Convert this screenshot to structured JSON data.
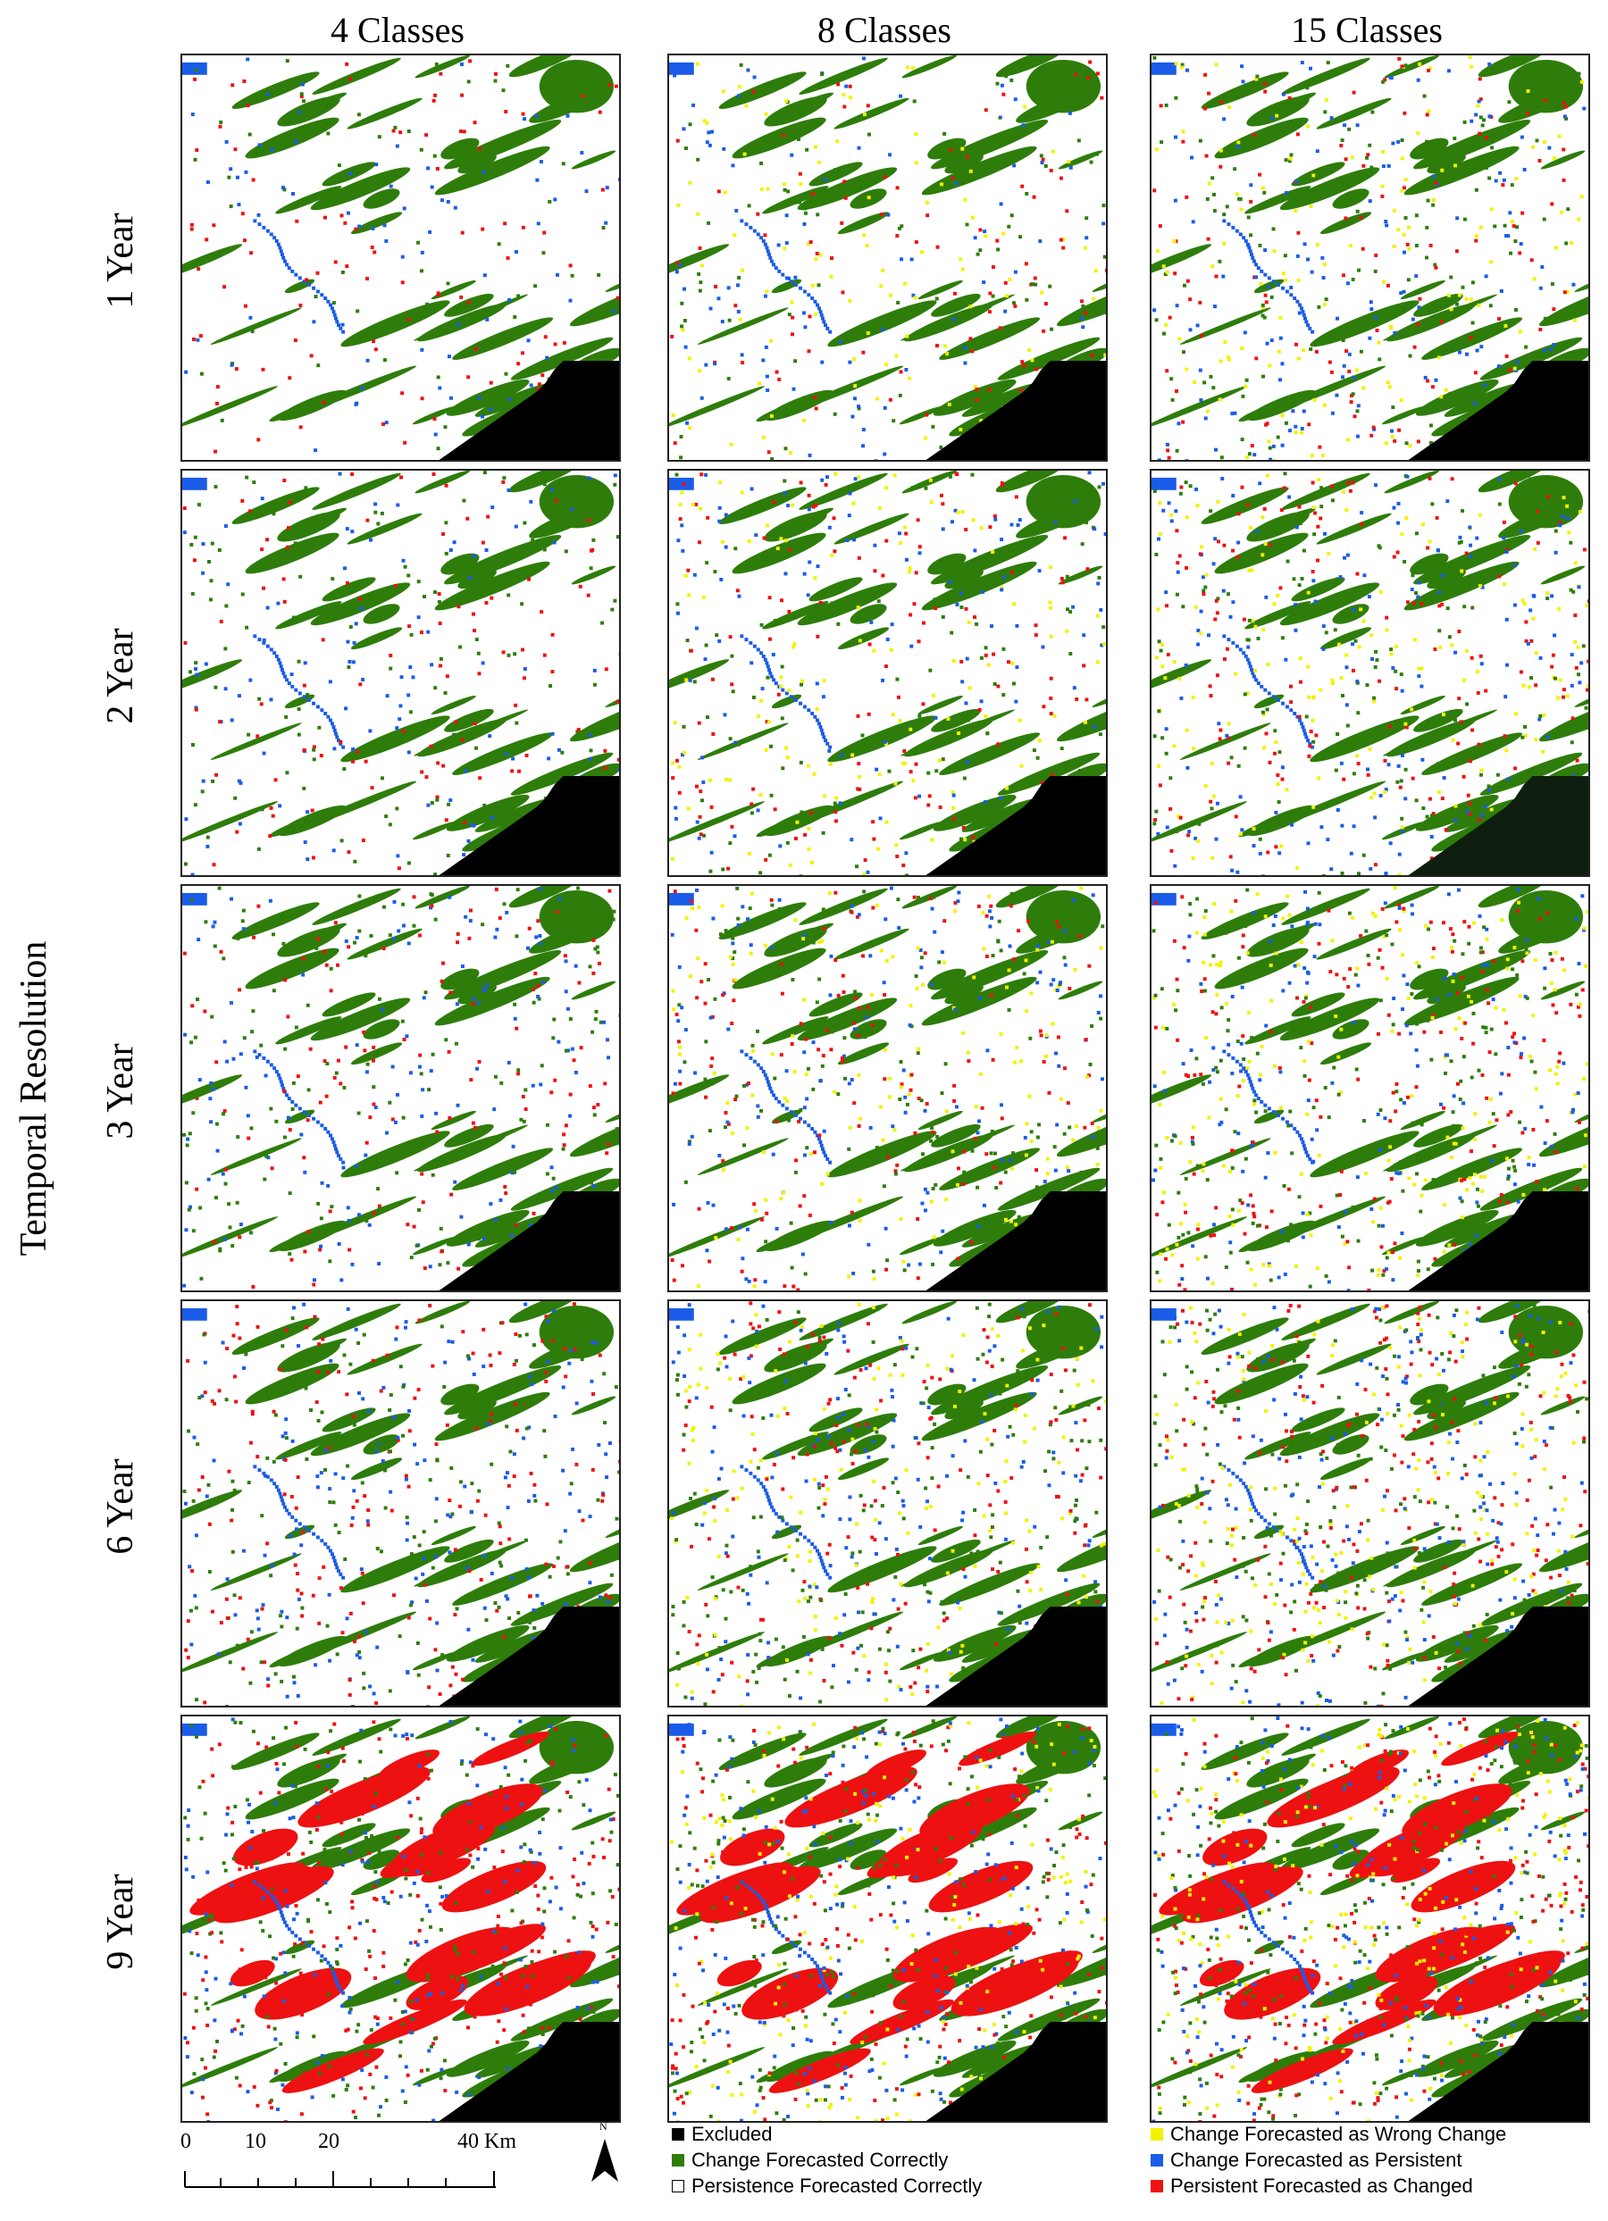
{
  "column_titles": [
    "4 Classes",
    "8 Classes",
    "15 Classes"
  ],
  "y_axis_title": "Temporal Resolution",
  "row_labels": [
    "1 Year",
    "2 Year",
    "3 Year",
    "6 Year",
    "9 Year"
  ],
  "colors": {
    "excluded": "#000000",
    "change_correct": "#2e7d0b",
    "persistence_correct": "#ffffff",
    "wrong_change": "#f2f200",
    "as_persistent": "#1a5ce8",
    "as_changed": "#ee1111"
  },
  "legend": {
    "excluded": "Excluded",
    "change_correct": "Change Forecasted Correctly",
    "persistence_correct": "Persistence Forecasted Correctly",
    "wrong_change": "Change Forecasted as Wrong Change",
    "as_persistent": "Change Forecasted as Persistent",
    "as_changed": "Persistent Forecasted as Changed"
  },
  "scale_bar": {
    "ticks": [
      "0",
      "10",
      "20",
      "40 Km"
    ]
  },
  "north_arrow": {
    "label": "N",
    "icon": "north-arrow-icon"
  }
}
